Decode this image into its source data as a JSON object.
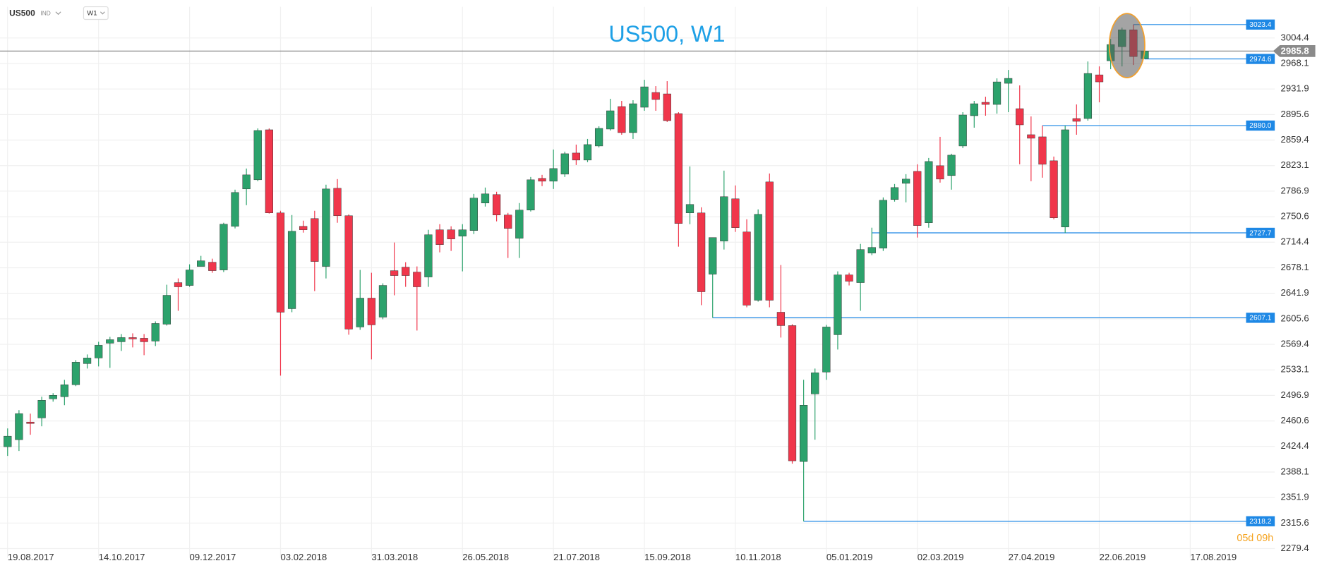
{
  "toolbar": {
    "symbol": "US500",
    "market": "IND",
    "interval": "W1"
  },
  "chart_data": {
    "type": "candlestick",
    "title": "US500, W1",
    "categories": [
      "19.08.2017",
      null,
      null,
      null,
      null,
      null,
      null,
      null,
      "14.10.2017",
      null,
      null,
      null,
      null,
      null,
      null,
      null,
      "09.12.2017",
      null,
      null,
      null,
      null,
      null,
      null,
      null,
      "03.02.2018",
      null,
      null,
      null,
      null,
      null,
      null,
      null,
      "31.03.2018",
      null,
      null,
      null,
      null,
      null,
      null,
      null,
      "26.05.2018",
      null,
      null,
      null,
      null,
      null,
      null,
      null,
      "21.07.2018",
      null,
      null,
      null,
      null,
      null,
      null,
      null,
      "15.09.2018",
      null,
      null,
      null,
      null,
      null,
      null,
      null,
      "10.11.2018",
      null,
      null,
      null,
      null,
      null,
      null,
      null,
      "05.01.2019",
      null,
      null,
      null,
      null,
      null,
      null,
      null,
      "02.03.2019",
      null,
      null,
      null,
      null,
      null,
      null,
      null,
      "27.04.2019",
      null,
      null,
      null,
      null,
      null,
      null,
      null,
      "22.06.2019",
      null,
      null,
      null,
      null,
      null,
      null,
      null,
      "17.08.2019"
    ],
    "open": [
      2424,
      2434,
      2459,
      2465,
      2492,
      2495,
      2512,
      2542,
      2550,
      2571,
      2573,
      2579,
      2578,
      2574,
      2598,
      2657,
      2653,
      2680,
      2686,
      2675,
      2737,
      2790,
      2803,
      2874,
      2756,
      2620,
      2737,
      2748,
      2680,
      2791,
      2752,
      2594,
      2635,
      2608,
      2674,
      2679,
      2672,
      2665,
      2732,
      2732,
      2723,
      2731,
      2770,
      2782,
      2753,
      2720,
      2760,
      2805,
      2801,
      2811,
      2841,
      2831,
      2851,
      2875,
      2907,
      2870,
      2906,
      2927,
      2925,
      2897,
      2756,
      2756,
      2669,
      2716,
      2776,
      2729,
      2632,
      2800,
      2615,
      2596,
      2403,
      2499,
      2530,
      2583,
      2668,
      2657,
      2699,
      2706,
      2775,
      2798,
      2815,
      2742,
      2823,
      2809,
      2851,
      2894,
      2913,
      2910,
      2940,
      2904,
      2867,
      2864,
      2830,
      2736,
      2890,
      2890,
      2952,
      2972,
      2992,
      3016,
      2975,
      null,
      null,
      null,
      null
    ],
    "high": [
      2450,
      2476,
      2471,
      2495,
      2500,
      2519,
      2547,
      2555,
      2573,
      2580,
      2584,
      2585,
      2584,
      2602,
      2654,
      2663,
      2683,
      2695,
      2691,
      2742,
      2789,
      2819,
      2876,
      2876,
      2759,
      2753,
      2745,
      2759,
      2796,
      2804,
      2754,
      2675,
      2671,
      2656,
      2714,
      2686,
      2680,
      2732,
      2740,
      2737,
      2740,
      2783,
      2792,
      2786,
      2756,
      2770,
      2807,
      2810,
      2846,
      2843,
      2853,
      2861,
      2879,
      2918,
      2915,
      2916,
      2945,
      2936,
      2943,
      2899,
      2822,
      2764,
      2721,
      2816,
      2795,
      2747,
      2761,
      2812,
      2682,
      2598,
      2519,
      2535,
      2597,
      2673,
      2671,
      2712,
      2735,
      2778,
      2797,
      2811,
      2825,
      2834,
      2864,
      2840,
      2899,
      2915,
      2921,
      2947,
      2959,
      2937,
      2893,
      2880,
      2836,
      2880,
      2910,
      2971,
      2964,
      3003,
      3019,
      3023.4,
      2987,
      null,
      null,
      null,
      null
    ],
    "low": [
      2411,
      2418,
      2441,
      2453,
      2488,
      2483,
      2510,
      2535,
      2538,
      2536,
      2560,
      2565,
      2554,
      2567,
      2596,
      2617,
      2651,
      2680,
      2671,
      2672,
      2734,
      2767,
      2801,
      2755,
      2525,
      2615,
      2728,
      2645,
      2663,
      2742,
      2583,
      2590,
      2548,
      2605,
      2639,
      2651,
      2589,
      2651,
      2700,
      2702,
      2673,
      2726,
      2765,
      2744,
      2692,
      2692,
      2758,
      2794,
      2790,
      2807,
      2824,
      2828,
      2849,
      2873,
      2867,
      2861,
      2901,
      2901,
      2885,
      2708,
      2740,
      2625,
      2607.1,
      2704,
      2729,
      2622,
      2630,
      2622,
      2579,
      2400,
      2318.2,
      2434,
      2519,
      2562,
      2653,
      2617,
      2696,
      2702,
      2772,
      2771,
      2721,
      2735,
      2799,
      2789,
      2848,
      2877,
      2894,
      2897,
      2899,
      2825,
      2801,
      2806,
      2747,
      2727.7,
      2867,
      2887,
      2913,
      2960,
      2964,
      2966,
      2974.6,
      null,
      null,
      null,
      null
    ],
    "close": [
      2439,
      2471,
      2457,
      2490,
      2497,
      2512,
      2544,
      2550,
      2568,
      2576,
      2579,
      2577,
      2573,
      2599,
      2639,
      2651,
      2675,
      2688,
      2674,
      2740,
      2785,
      2810,
      2873,
      2756,
      2615,
      2730,
      2732,
      2687,
      2790,
      2752,
      2591,
      2635,
      2597,
      2653,
      2667,
      2667,
      2651,
      2725,
      2711,
      2719,
      2732,
      2777,
      2783,
      2753,
      2734,
      2760,
      2803,
      2801,
      2819,
      2840,
      2831,
      2853,
      2876,
      2901,
      2870,
      2911,
      2935,
      2917,
      2887,
      2741,
      2768,
      2644,
      2721,
      2779,
      2735,
      2625,
      2754,
      2632,
      2596,
      2404,
      2483,
      2529,
      2594,
      2668,
      2659,
      2704,
      2707,
      2774,
      2792,
      2804,
      2738,
      2829,
      2804,
      2838,
      2895,
      2911,
      2910,
      2942,
      2947,
      2881,
      2862,
      2825,
      2749,
      2874,
      2886,
      2954,
      2942,
      2995,
      3016,
      2978,
      2985.8,
      null,
      null,
      null,
      null
    ],
    "up_color": "#2ca26c",
    "down_color": "#f0364b",
    "ylim": [
      2266.2,
      3048.7
    ],
    "yticks": [
      3004.4,
      2968.1,
      2931.9,
      2895.6,
      2859.4,
      2823.1,
      2786.9,
      2750.6,
      2714.4,
      2678.1,
      2641.9,
      2605.6,
      2569.4,
      2533.1,
      2496.9,
      2460.6,
      2424.4,
      2388.1,
      2351.9,
      2315.6,
      2279.4
    ],
    "levels": [
      3023.4,
      2974.6,
      {
        "value": 2880,
        "label": "2880.0"
      },
      2727.7,
      2607.1,
      2318.2
    ],
    "level_color": "#1e88e5",
    "current_price": 2985.8,
    "countdown": "05d 09h",
    "grid": true
  }
}
